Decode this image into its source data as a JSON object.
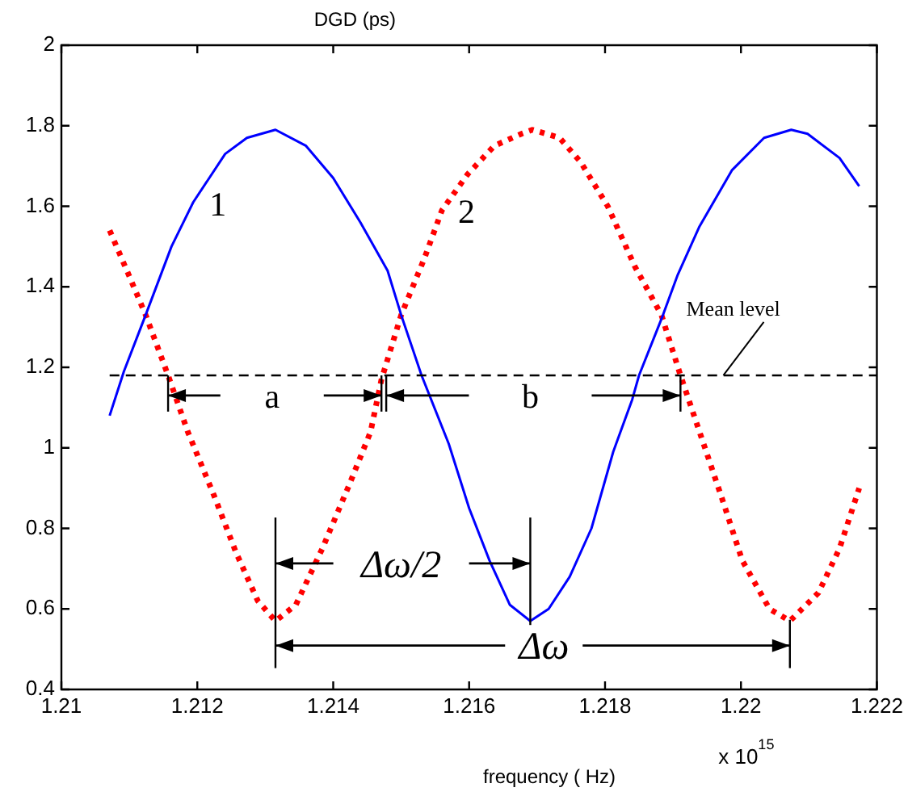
{
  "chart_data": {
    "type": "line",
    "ylabel": "DGD (ps)",
    "xlabel": "frequency ( Hz)",
    "xlim": [
      1.21,
      1.222
    ],
    "xticks": [
      1.21,
      1.212,
      1.214,
      1.216,
      1.218,
      1.22,
      1.222
    ],
    "ylim": [
      0.4,
      2
    ],
    "yticks": [
      0.4,
      0.6,
      0.8,
      1,
      1.2,
      1.4,
      1.6,
      1.8,
      2
    ],
    "grid": false,
    "legend": false,
    "marker": "none",
    "series": [
      {
        "name": "1",
        "color": "#0000ff",
        "line_style": "solid",
        "x": [
          1.21071,
          1.21092,
          1.21124,
          1.21162,
          1.21194,
          1.21241,
          1.21273,
          1.21315,
          1.2136,
          1.214,
          1.2144,
          1.2148,
          1.215,
          1.2153,
          1.2157,
          1.216,
          1.2163,
          1.2166,
          1.2169,
          1.21717,
          1.21748,
          1.2178,
          1.21812,
          1.2184,
          1.2185,
          1.21883,
          1.21907,
          1.21939,
          1.21987,
          1.22034,
          1.22074,
          1.22098,
          1.22145,
          1.22174
        ],
        "values": [
          1.08,
          1.19,
          1.33,
          1.5,
          1.61,
          1.73,
          1.77,
          1.79,
          1.75,
          1.67,
          1.56,
          1.44,
          1.33,
          1.18,
          1.01,
          0.85,
          0.72,
          0.61,
          0.57,
          0.6,
          0.68,
          0.8,
          0.99,
          1.12,
          1.18,
          1.32,
          1.43,
          1.55,
          1.69,
          1.77,
          1.79,
          1.78,
          1.72,
          1.65
        ]
      },
      {
        "name": "2",
        "color": "#ff0000",
        "line_style": "dotted",
        "x": [
          1.21071,
          1.21099,
          1.21124,
          1.21157,
          1.21186,
          1.21225,
          1.21257,
          1.21289,
          1.21315,
          1.21345,
          1.21384,
          1.21424,
          1.21455,
          1.21471,
          1.215,
          1.21534,
          1.2156,
          1.21598,
          1.21637,
          1.21677,
          1.21693,
          1.21733,
          1.21764,
          1.21804,
          1.21844,
          1.21883,
          1.21911,
          1.21939,
          1.21971,
          1.22002,
          1.22042,
          1.22072,
          1.22114,
          1.22145,
          1.22174
        ],
        "values": [
          1.54,
          1.43,
          1.33,
          1.18,
          1.04,
          0.88,
          0.74,
          0.62,
          0.57,
          0.61,
          0.75,
          0.91,
          1.04,
          1.17,
          1.33,
          1.47,
          1.59,
          1.68,
          1.75,
          1.78,
          1.79,
          1.77,
          1.71,
          1.6,
          1.45,
          1.33,
          1.18,
          1.04,
          0.88,
          0.72,
          0.6,
          0.57,
          0.64,
          0.75,
          0.9
        ]
      }
    ],
    "ref_lines": [
      {
        "axis": "y",
        "value": 1.18,
        "label": "Mean level",
        "color": "#000000",
        "line_style": "dashed"
      }
    ],
    "annotations": [
      "a",
      "b",
      "Δω/2",
      "Δω",
      "x 10$^{15}$"
    ]
  }
}
